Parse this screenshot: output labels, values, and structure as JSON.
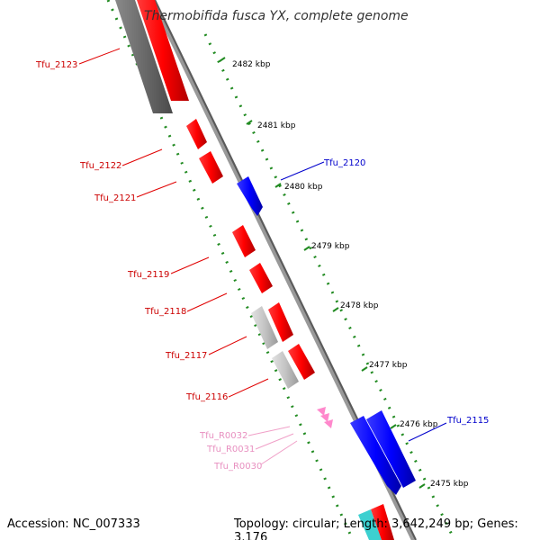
{
  "title": "Thermobifida fusca YX, complete genome",
  "footer": {
    "accession": "Accession: NC_007333",
    "summary": "Topology: circular; Length: 3,642,249 bp; Genes: 3,176"
  },
  "ticks": [
    "2482 kbp",
    "2481 kbp",
    "2480 kbp",
    "2479 kbp",
    "2478 kbp",
    "2477 kbp",
    "2476 kbp",
    "2475 kbp"
  ],
  "genes": {
    "red": [
      "Tfu_2123",
      "Tfu_2122",
      "Tfu_2121",
      "Tfu_2119",
      "Tfu_2118",
      "Tfu_2117",
      "Tfu_2116"
    ],
    "blue": [
      "Tfu_2120",
      "Tfu_2115"
    ],
    "pink": [
      "Tfu_R0032",
      "Tfu_R0031",
      "Tfu_R0030"
    ]
  },
  "colors": {
    "cds_forward": "#ff0000",
    "cds_reverse": "#0000ff",
    "pseudo": "#c0c0c0",
    "rna": "#ff88cc",
    "backbone": "#888888",
    "tick_line": "#228b22"
  }
}
